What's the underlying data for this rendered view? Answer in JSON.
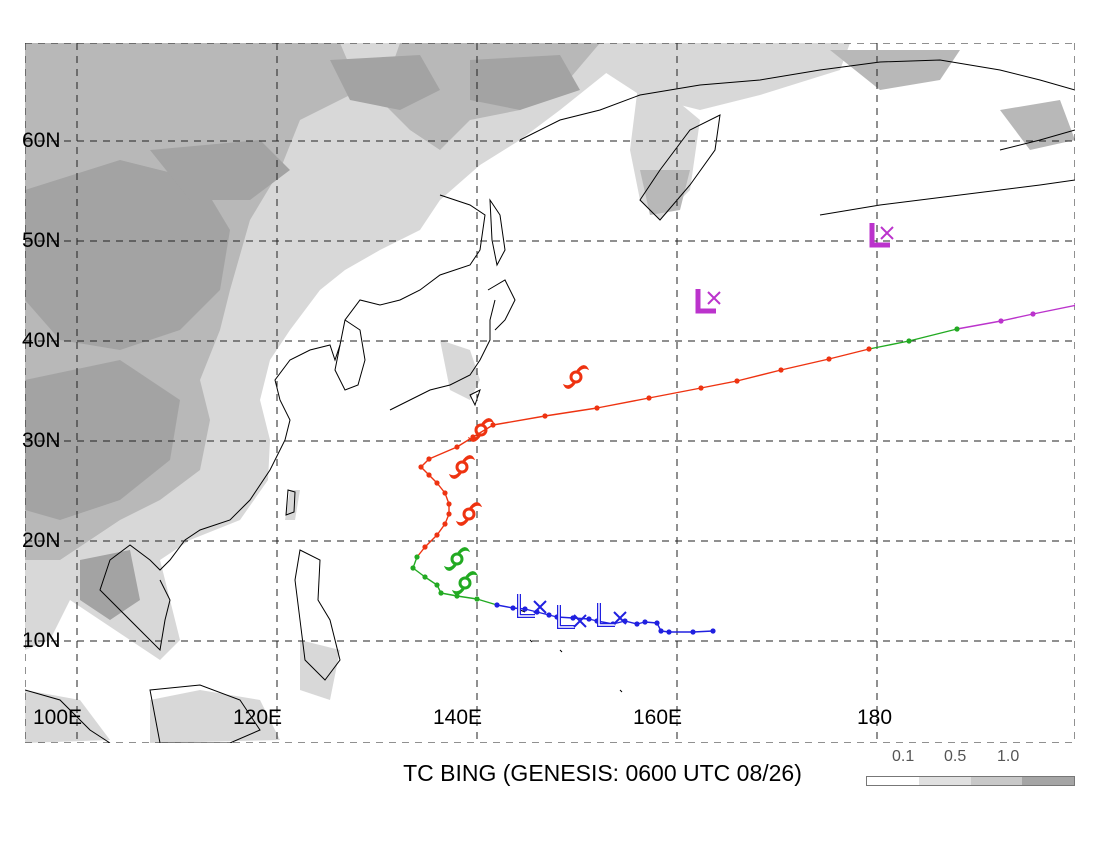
{
  "title": "TC BING (GENESIS: 0600 UTC 08/26)",
  "map": {
    "lat_labels": [
      "60N",
      "50N",
      "40N",
      "30N",
      "20N",
      "10N"
    ],
    "lon_labels": [
      "100E",
      "120E",
      "140E",
      "160E",
      "180"
    ],
    "grid_lines": "dashed"
  },
  "legend": {
    "ticks": [
      "0.1",
      "0.5",
      "1.0"
    ],
    "colors": [
      "#ffffff",
      "#e0e0e0",
      "#c8c8c8",
      "#a5a5a5"
    ]
  },
  "terrain_colors": [
    "#d8d8d8",
    "#b8b8b8",
    "#a3a3a3"
  ],
  "track": {
    "colors": {
      "low": "#2020e0",
      "tropical_storm": "#22aa22",
      "typhoon": "#ee3311",
      "extratropical": "#bb33cc"
    },
    "points": [
      [
        15.9,
        11.0,
        "low"
      ],
      [
        15.4,
        10.9,
        "low"
      ],
      [
        14.8,
        10.9,
        "low"
      ],
      [
        14.6,
        11.0,
        "low"
      ],
      [
        14.5,
        11.8,
        "low"
      ],
      [
        14.2,
        11.9,
        "low"
      ],
      [
        14.0,
        11.7,
        "low"
      ],
      [
        13.7,
        12.0,
        "low"
      ],
      [
        13.4,
        11.7,
        "low"
      ],
      [
        13.0,
        12.0,
        "low"
      ],
      [
        12.8,
        12.2,
        "low"
      ],
      [
        12.4,
        12.3,
        "low"
      ],
      [
        12.0,
        12.4,
        "low"
      ],
      [
        11.8,
        12.6,
        "low"
      ],
      [
        11.5,
        12.9,
        "low"
      ],
      [
        11.2,
        13.2,
        "low"
      ],
      [
        10.9,
        13.3,
        "low"
      ],
      [
        10.5,
        13.6,
        "low"
      ],
      [
        10.0,
        14.2,
        "tropical_storm"
      ],
      [
        9.5,
        14.5,
        "tropical_storm"
      ],
      [
        9.1,
        14.8,
        "tropical_storm"
      ],
      [
        9.0,
        15.6,
        "tropical_storm"
      ],
      [
        8.7,
        16.4,
        "tropical_storm"
      ],
      [
        8.4,
        17.3,
        "tropical_storm"
      ],
      [
        8.5,
        18.4,
        "tropical_storm"
      ],
      [
        8.7,
        19.4,
        "typhoon"
      ],
      [
        9.0,
        20.6,
        "typhoon"
      ],
      [
        9.2,
        21.7,
        "typhoon"
      ],
      [
        9.3,
        22.7,
        "typhoon"
      ],
      [
        9.3,
        23.7,
        "typhoon"
      ],
      [
        9.2,
        24.8,
        "typhoon"
      ],
      [
        9.0,
        25.8,
        "typhoon"
      ],
      [
        8.8,
        26.6,
        "typhoon"
      ],
      [
        8.6,
        27.4,
        "typhoon"
      ],
      [
        8.8,
        28.2,
        "typhoon"
      ],
      [
        9.5,
        29.4,
        "typhoon"
      ],
      [
        9.9,
        30.4,
        "typhoon"
      ],
      [
        10.4,
        31.6,
        "typhoon"
      ],
      [
        11.7,
        32.5,
        "typhoon"
      ],
      [
        13.0,
        33.3,
        "typhoon"
      ],
      [
        14.3,
        34.3,
        "typhoon"
      ],
      [
        15.6,
        35.3,
        "typhoon"
      ],
      [
        16.5,
        36.0,
        "typhoon"
      ],
      [
        17.6,
        37.1,
        "typhoon"
      ],
      [
        18.8,
        38.2,
        "typhoon"
      ],
      [
        19.8,
        39.2,
        "typhoon"
      ],
      [
        20.8,
        40.0,
        "tropical_storm"
      ],
      [
        22.0,
        41.2,
        "tropical_storm"
      ],
      [
        23.1,
        42.0,
        "extratropical"
      ],
      [
        23.9,
        42.7,
        "extratropical"
      ],
      [
        25.0,
        43.6,
        "extratropical"
      ],
      [
        26.4,
        44.6,
        "extratropical"
      ],
      [
        28.0,
        45.5,
        "extratropical"
      ],
      [
        29.7,
        46.3,
        "extratropical"
      ],
      [
        31.7,
        46.9,
        "extratropical"
      ],
      [
        33.8,
        47.5,
        "extratropical"
      ],
      [
        36.0,
        48.7,
        "extratropical"
      ],
      [
        38.0,
        49.6,
        "extratropical"
      ],
      [
        40.3,
        50.4,
        "extratropical"
      ]
    ],
    "symbols": [
      {
        "type": "low",
        "icon": "low-pressure-icon",
        "lon": 145.0,
        "lat": 13.3,
        "x_lon": 146.3,
        "x_lat": 13.4
      },
      {
        "type": "low",
        "icon": "low-pressure-icon",
        "lon": 149.0,
        "lat": 12.2,
        "x_lon": 150.3,
        "x_lat": 12.0
      },
      {
        "type": "low",
        "icon": "low-pressure-icon",
        "lon": 153.0,
        "lat": 12.4,
        "x_lon": 154.3,
        "x_lat": 12.3
      },
      {
        "type": "tropical_storm",
        "icon": "tropical-storm-icon",
        "lon": 138.0,
        "lat": 18.2
      },
      {
        "type": "tropical_storm",
        "icon": "tropical-storm-icon",
        "lon": 138.8,
        "lat": 15.8
      },
      {
        "type": "typhoon",
        "icon": "typhoon-icon",
        "lon": 139.2,
        "lat": 22.7
      },
      {
        "type": "typhoon",
        "icon": "typhoon-icon",
        "lon": 138.5,
        "lat": 27.4
      },
      {
        "type": "typhoon",
        "icon": "typhoon-icon",
        "lon": 140.4,
        "lat": 31.1
      },
      {
        "type": "typhoon",
        "icon": "typhoon-icon",
        "lon": 149.9,
        "lat": 36.4
      },
      {
        "type": "extratropical",
        "icon": "low-pressure-icon",
        "lon": 162.9,
        "lat": 43.8,
        "x_lon": 163.7,
        "x_lat": 44.3
      },
      {
        "type": "extratropical",
        "icon": "low-pressure-icon",
        "lon": 180.3,
        "lat": 50.4,
        "x_lon": 181.0,
        "x_lat": 50.8
      }
    ]
  }
}
